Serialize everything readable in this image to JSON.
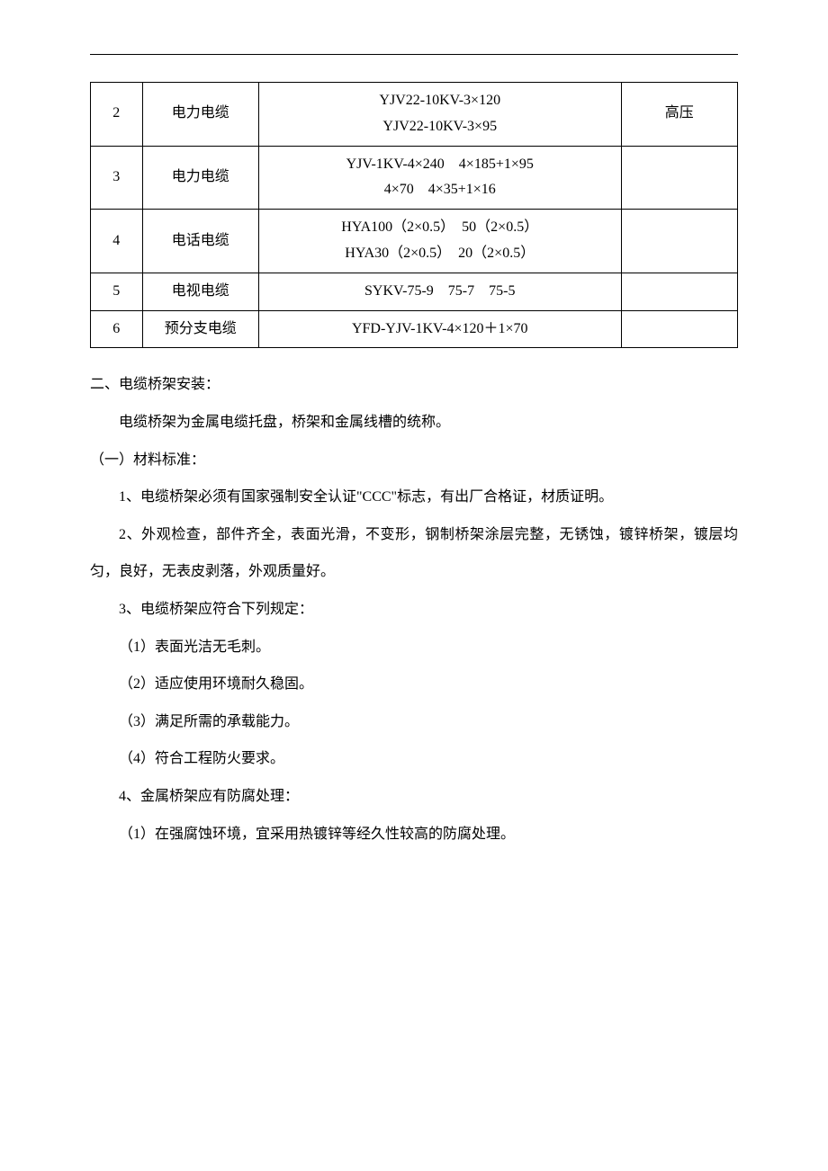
{
  "table": {
    "rows": [
      {
        "num": "2",
        "type": "电力电缆",
        "spec_line1": "YJV22-10KV-3×120",
        "spec_line2": "YJV22-10KV-3×95",
        "note": "高压"
      },
      {
        "num": "3",
        "type": "电力电缆",
        "spec_line1": "YJV-1KV-4×240　4×185+1×95",
        "spec_line2": "4×70　4×35+1×16",
        "note": ""
      },
      {
        "num": "4",
        "type": "电话电缆",
        "spec_line1": "HYA100（2×0.5）　50（2×0.5）",
        "spec_line2": "HYA30（2×0.5）　20（2×0.5）",
        "note": ""
      },
      {
        "num": "5",
        "type": "电视电缆",
        "spec": "SYKV-75-9　75-7　75-5",
        "note": ""
      },
      {
        "num": "6",
        "type": "预分支电缆",
        "spec": "YFD-YJV-1KV-4×120＋1×70",
        "note": ""
      }
    ]
  },
  "section": {
    "heading": "二、电缆桥架安装：",
    "intro": "电缆桥架为金属电缆托盘，桥架和金属线槽的统称。",
    "sub1_heading": "（一）材料标准：",
    "p1": "1、电缆桥架必须有国家强制安全认证\"CCC\"标志，有出厂合格证，材质证明。",
    "p2": "2、外观检查，部件齐全，表面光滑，不变形，钢制桥架涂层完整，无锈蚀，镀锌桥架，镀层均匀，良好，无表皮剥落，外观质量好。",
    "p3": "3、电缆桥架应符合下列规定：",
    "p3_1": "（1）表面光洁无毛刺。",
    "p3_2": "（2）适应使用环境耐久稳固。",
    "p3_3": "（3）满足所需的承载能力。",
    "p3_4": "（4）符合工程防火要求。",
    "p4": "4、金属桥架应有防腐处理：",
    "p4_1": "（1）在强腐蚀环境，宜采用热镀锌等经久性较高的防腐处理。"
  }
}
